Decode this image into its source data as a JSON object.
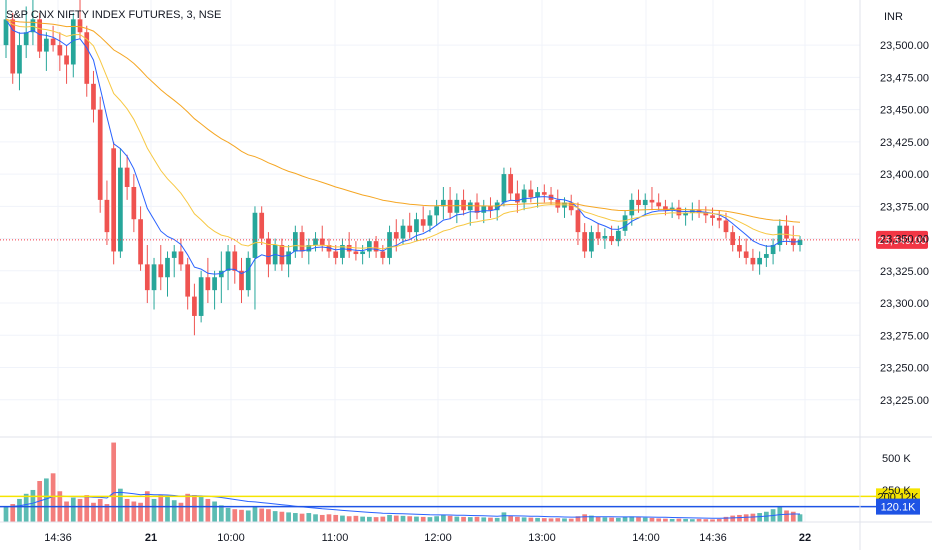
{
  "header": {
    "symbol_title": "S&P CNX NIFTY INDEX FUTURES, 3, NSE",
    "currency": "INR"
  },
  "colors": {
    "up": "#26a69a",
    "down": "#ef5350",
    "ma_fast": "#2962ff",
    "ma_mid": "#f7c843",
    "ma_slow": "#f5a623",
    "vol_ma": "#2962ff",
    "last_price_bg": "#f23645",
    "vol_level_yellow": "#f5e400",
    "vol_level_blue": "#1e53e5"
  },
  "price_badges": {
    "last_price": "23,349.00",
    "vol_high": "200.12K",
    "vol_avg": "120.1K"
  },
  "chart_data": {
    "type": "candlestick",
    "y_axis": {
      "ticks": [
        23225,
        23250,
        23275,
        23300,
        23325,
        23350,
        23375,
        23400,
        23425,
        23450,
        23475,
        23500
      ],
      "tick_labels": [
        "23,225.00",
        "23,250.00",
        "23,275.00",
        "23,300.00",
        "23,325.00",
        "23,350.00",
        "23,375.00",
        "23,400.00",
        "23,425.00",
        "23,450.00",
        "23,475.00",
        "23,500.00"
      ],
      "range": [
        23200,
        23535
      ]
    },
    "x_axis": {
      "ticks": [
        "14:36",
        "21",
        "10:00",
        "11:00",
        "12:00",
        "13:00",
        "14:00",
        "14:36",
        "22"
      ]
    },
    "volume_axis": {
      "ticks_labels": [
        "500 K",
        "250 K"
      ],
      "range": [
        0,
        640000
      ]
    },
    "last_price": 23349,
    "vol_levels": [
      200120,
      120100
    ],
    "candles": [
      [
        23500,
        23540,
        23490,
        23520,
        120000
      ],
      [
        23520,
        23525,
        23470,
        23478,
        140000
      ],
      [
        23478,
        23510,
        23465,
        23500,
        180000
      ],
      [
        23500,
        23530,
        23490,
        23510,
        220000
      ],
      [
        23510,
        23540,
        23500,
        23520,
        250000
      ],
      [
        23520,
        23525,
        23490,
        23495,
        320000
      ],
      [
        23495,
        23510,
        23480,
        23505,
        340000
      ],
      [
        23505,
        23515,
        23495,
        23500,
        380000
      ],
      [
        23500,
        23510,
        23480,
        23492,
        240000
      ],
      [
        23492,
        23500,
        23470,
        23485,
        160000
      ],
      [
        23485,
        23525,
        23475,
        23520,
        190000
      ],
      [
        23520,
        23535,
        23505,
        23510,
        180000
      ],
      [
        23510,
        23515,
        23460,
        23470,
        210000
      ],
      [
        23470,
        23480,
        23440,
        23450,
        150000
      ],
      [
        23450,
        23460,
        23370,
        23380,
        180000
      ],
      [
        23380,
        23395,
        23345,
        23355,
        140000
      ],
      [
        23420,
        23425,
        23330,
        23340,
        620000
      ],
      [
        23340,
        23420,
        23335,
        23405,
        260000
      ],
      [
        23405,
        23415,
        23380,
        23390,
        180000
      ],
      [
        23390,
        23400,
        23355,
        23365,
        160000
      ],
      [
        23365,
        23375,
        23325,
        23330,
        150000
      ],
      [
        23330,
        23345,
        23300,
        23310,
        240000
      ],
      [
        23310,
        23335,
        23295,
        23330,
        180000
      ],
      [
        23330,
        23345,
        23310,
        23320,
        210000
      ],
      [
        23320,
        23340,
        23305,
        23335,
        200000
      ],
      [
        23335,
        23345,
        23320,
        23340,
        170000
      ],
      [
        23340,
        23350,
        23325,
        23330,
        150000
      ],
      [
        23330,
        23335,
        23295,
        23305,
        220000
      ],
      [
        23305,
        23315,
        23275,
        23290,
        210000
      ],
      [
        23290,
        23325,
        23285,
        23320,
        200000
      ],
      [
        23320,
        23335,
        23300,
        23310,
        180000
      ],
      [
        23310,
        23325,
        23295,
        23320,
        160000
      ],
      [
        23320,
        23340,
        23300,
        23325,
        130000
      ],
      [
        23325,
        23345,
        23310,
        23340,
        110000
      ],
      [
        23340,
        23345,
        23315,
        23325,
        100000
      ],
      [
        23325,
        23335,
        23300,
        23310,
        95000
      ],
      [
        23310,
        23340,
        23305,
        23335,
        90000
      ],
      [
        23335,
        23375,
        23295,
        23370,
        120000
      ],
      [
        23370,
        23375,
        23345,
        23350,
        105000
      ],
      [
        23350,
        23355,
        23320,
        23330,
        100000
      ],
      [
        23330,
        23350,
        23325,
        23345,
        85000
      ],
      [
        23345,
        23350,
        23325,
        23330,
        80000
      ],
      [
        23330,
        23345,
        23320,
        23340,
        75000
      ],
      [
        23340,
        23360,
        23335,
        23355,
        70000
      ],
      [
        23355,
        23360,
        23335,
        23340,
        65000
      ],
      [
        23340,
        23350,
        23330,
        23345,
        70000
      ],
      [
        23345,
        23355,
        23340,
        23350,
        60000
      ],
      [
        23350,
        23360,
        23340,
        23345,
        55000
      ],
      [
        23345,
        23350,
        23335,
        23340,
        60000
      ],
      [
        23340,
        23345,
        23330,
        23335,
        55000
      ],
      [
        23335,
        23350,
        23330,
        23345,
        50000
      ],
      [
        23345,
        23355,
        23335,
        23340,
        45000
      ],
      [
        23340,
        23348,
        23333,
        23338,
        48000
      ],
      [
        23338,
        23345,
        23330,
        23340,
        42000
      ],
      [
        23340,
        23350,
        23335,
        23348,
        40000
      ],
      [
        23348,
        23352,
        23335,
        23340,
        38000
      ],
      [
        23340,
        23345,
        23330,
        23335,
        42000
      ],
      [
        23335,
        23360,
        23330,
        23355,
        55000
      ],
      [
        23355,
        23365,
        23340,
        23350,
        50000
      ],
      [
        23350,
        23365,
        23345,
        23360,
        48000
      ],
      [
        23360,
        23370,
        23350,
        23355,
        45000
      ],
      [
        23355,
        23370,
        23348,
        23365,
        42000
      ],
      [
        23365,
        23375,
        23355,
        23360,
        40000
      ],
      [
        23360,
        23372,
        23355,
        23368,
        38000
      ],
      [
        23368,
        23380,
        23360,
        23375,
        45000
      ],
      [
        23375,
        23390,
        23365,
        23380,
        55000
      ],
      [
        23380,
        23390,
        23365,
        23370,
        48000
      ],
      [
        23370,
        23385,
        23362,
        23380,
        42000
      ],
      [
        23380,
        23388,
        23368,
        23372,
        40000
      ],
      [
        23372,
        23380,
        23360,
        23378,
        38000
      ],
      [
        23378,
        23385,
        23365,
        23370,
        40000
      ],
      [
        23370,
        23380,
        23362,
        23375,
        36000
      ],
      [
        23375,
        23382,
        23366,
        23372,
        34000
      ],
      [
        23372,
        23380,
        23364,
        23378,
        32000
      ],
      [
        23378,
        23405,
        23375,
        23400,
        75000
      ],
      [
        23400,
        23405,
        23380,
        23385,
        50000
      ],
      [
        23385,
        23395,
        23370,
        23378,
        40000
      ],
      [
        23378,
        23392,
        23372,
        23388,
        36000
      ],
      [
        23388,
        23395,
        23378,
        23382,
        34000
      ],
      [
        23382,
        23390,
        23374,
        23386,
        32000
      ],
      [
        23386,
        23392,
        23378,
        23384,
        30000
      ],
      [
        23384,
        23390,
        23376,
        23380,
        28000
      ],
      [
        23380,
        23388,
        23370,
        23374,
        30000
      ],
      [
        23374,
        23382,
        23366,
        23378,
        28000
      ],
      [
        23378,
        23384,
        23368,
        23372,
        26000
      ],
      [
        23372,
        23378,
        23345,
        23355,
        45000
      ],
      [
        23355,
        23362,
        23335,
        23340,
        60000
      ],
      [
        23340,
        23360,
        23335,
        23355,
        50000
      ],
      [
        23355,
        23362,
        23345,
        23350,
        40000
      ],
      [
        23350,
        23358,
        23342,
        23352,
        36000
      ],
      [
        23352,
        23360,
        23345,
        23348,
        34000
      ],
      [
        23348,
        23360,
        23344,
        23356,
        32000
      ],
      [
        23356,
        23372,
        23352,
        23368,
        40000
      ],
      [
        23368,
        23385,
        23360,
        23380,
        44000
      ],
      [
        23380,
        23388,
        23370,
        23376,
        38000
      ],
      [
        23376,
        23385,
        23368,
        23380,
        34000
      ],
      [
        23380,
        23390,
        23372,
        23378,
        32000
      ],
      [
        23378,
        23385,
        23372,
        23375,
        28000
      ],
      [
        23375,
        23380,
        23368,
        23372,
        26000
      ],
      [
        23372,
        23378,
        23366,
        23374,
        24000
      ],
      [
        23374,
        23380,
        23365,
        23368,
        26000
      ],
      [
        23368,
        23374,
        23360,
        23370,
        24000
      ],
      [
        23370,
        23378,
        23364,
        23372,
        22000
      ],
      [
        23372,
        23380,
        23366,
        23370,
        24000
      ],
      [
        23370,
        23375,
        23362,
        23368,
        22000
      ],
      [
        23368,
        23374,
        23360,
        23366,
        20000
      ],
      [
        23366,
        23372,
        23358,
        23364,
        24000
      ],
      [
        23364,
        23370,
        23350,
        23355,
        40000
      ],
      [
        23355,
        23360,
        23340,
        23345,
        50000
      ],
      [
        23345,
        23352,
        23335,
        23340,
        55000
      ],
      [
        23340,
        23350,
        23330,
        23335,
        60000
      ],
      [
        23335,
        23342,
        23325,
        23330,
        65000
      ],
      [
        23330,
        23340,
        23322,
        23335,
        70000
      ],
      [
        23335,
        23345,
        23328,
        23338,
        80000
      ],
      [
        23338,
        23350,
        23330,
        23345,
        100000
      ],
      [
        23345,
        23365,
        23340,
        23360,
        120000
      ],
      [
        23360,
        23368,
        23345,
        23350,
        90000
      ],
      [
        23350,
        23360,
        23340,
        23345,
        80000
      ],
      [
        23345,
        23352,
        23340,
        23349,
        60000
      ]
    ]
  }
}
